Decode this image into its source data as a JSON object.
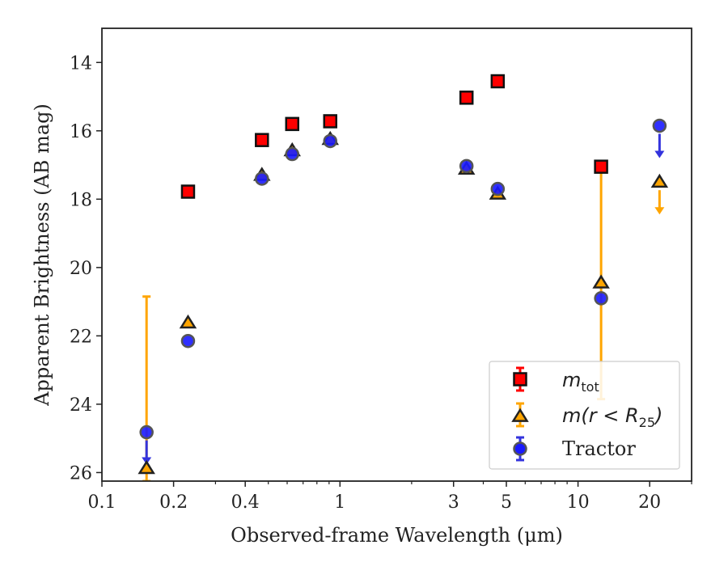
{
  "chart_data": {
    "type": "scatter",
    "title": "",
    "xlabel": "Observed-frame Wavelength (μm)",
    "ylabel": "Apparent Brightness (AB mag)",
    "xscale": "log",
    "xlim": [
      0.1,
      30
    ],
    "ylim": [
      26.25,
      13.0
    ],
    "y_inverted": true,
    "x_ticks": [
      0.1,
      0.2,
      0.4,
      1,
      3,
      5,
      10,
      20
    ],
    "x_tick_labels": [
      "0.1",
      "0.2",
      "0.4",
      "1",
      "3",
      "5",
      "10",
      "20"
    ],
    "y_ticks": [
      14,
      16,
      18,
      20,
      22,
      24,
      26
    ],
    "y_tick_labels": [
      "14",
      "16",
      "18",
      "20",
      "22",
      "24",
      "26"
    ],
    "legend_position": "lower-right",
    "colors": {
      "mtot": "#ff0000",
      "mr25": "#ffa500",
      "tractor": "#1a1aff",
      "tractor_err": "#3333dd"
    },
    "series": [
      {
        "name": "m_tot",
        "marker": "square",
        "color": "#ff0000",
        "points": [
          {
            "x": 0.23,
            "y": 17.78
          },
          {
            "x": 0.47,
            "y": 16.27
          },
          {
            "x": 0.63,
            "y": 15.8
          },
          {
            "x": 0.91,
            "y": 15.72
          },
          {
            "x": 3.4,
            "y": 15.03
          },
          {
            "x": 4.6,
            "y": 14.55
          },
          {
            "x": 12.5,
            "y": 17.05
          }
        ]
      },
      {
        "name": "m(r<R25)",
        "marker": "triangle",
        "color": "#ffa500",
        "points": [
          {
            "x": 0.154,
            "y": 25.88,
            "err_low": 20.85,
            "err_high": 26.25
          },
          {
            "x": 0.23,
            "y": 21.62
          },
          {
            "x": 0.47,
            "y": 17.3
          },
          {
            "x": 0.63,
            "y": 16.58
          },
          {
            "x": 0.91,
            "y": 16.25
          },
          {
            "x": 3.4,
            "y": 17.12
          },
          {
            "x": 4.6,
            "y": 17.85
          },
          {
            "x": 12.5,
            "y": 20.45,
            "err_low": 17.05,
            "err_high": 23.85
          },
          {
            "x": 22,
            "y": 17.5,
            "upper_limit": true
          }
        ]
      },
      {
        "name": "Tractor",
        "marker": "circle",
        "color": "#1a1aff",
        "points": [
          {
            "x": 0.154,
            "y": 24.82,
            "upper_limit": true
          },
          {
            "x": 0.23,
            "y": 22.15
          },
          {
            "x": 0.47,
            "y": 17.4
          },
          {
            "x": 0.63,
            "y": 16.68
          },
          {
            "x": 0.91,
            "y": 16.3
          },
          {
            "x": 3.4,
            "y": 17.03
          },
          {
            "x": 4.6,
            "y": 17.7
          },
          {
            "x": 12.5,
            "y": 20.9
          },
          {
            "x": 22,
            "y": 15.85,
            "upper_limit": true
          }
        ]
      }
    ],
    "legend": [
      {
        "key": "mtot",
        "base": "m",
        "sub": "tot"
      },
      {
        "key": "mr25",
        "text": "m(r < R",
        "sub": "25",
        "tail": ")"
      },
      {
        "key": "tractor",
        "text": "Tractor"
      }
    ]
  }
}
